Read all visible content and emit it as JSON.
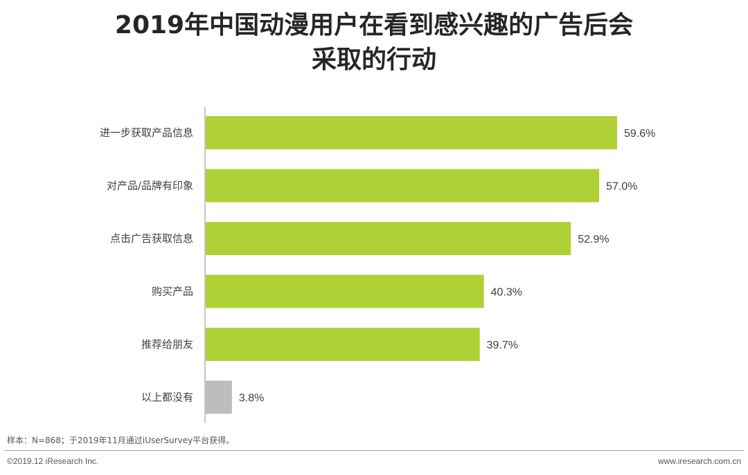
{
  "title_line1": "2019年中国动漫用户在看到感兴趣的广告后会",
  "title_line2": "采取的行动",
  "chart_data": {
    "type": "bar",
    "orientation": "horizontal",
    "categories": [
      "进一步获取产品信息",
      "对产品/品牌有印象",
      "点击广告获取信息",
      "购买产品",
      "推荐给朋友",
      "以上都没有"
    ],
    "values": [
      59.6,
      57.0,
      52.9,
      40.3,
      39.7,
      3.8
    ],
    "value_labels": [
      "59.6%",
      "57.0%",
      "52.9%",
      "40.3%",
      "39.7%",
      "3.8%"
    ],
    "bar_colors": [
      "#afd136",
      "#afd136",
      "#afd136",
      "#afd136",
      "#afd136",
      "#bdbdbd"
    ],
    "xlim": [
      0,
      72
    ],
    "grid": false,
    "legend": "none"
  },
  "footnote": "样本：N=868；于2019年11月通过iUserSurvey平台获得。",
  "copyright": "©2019.12 iResearch Inc.",
  "website": "www.iresearch.com.cn"
}
